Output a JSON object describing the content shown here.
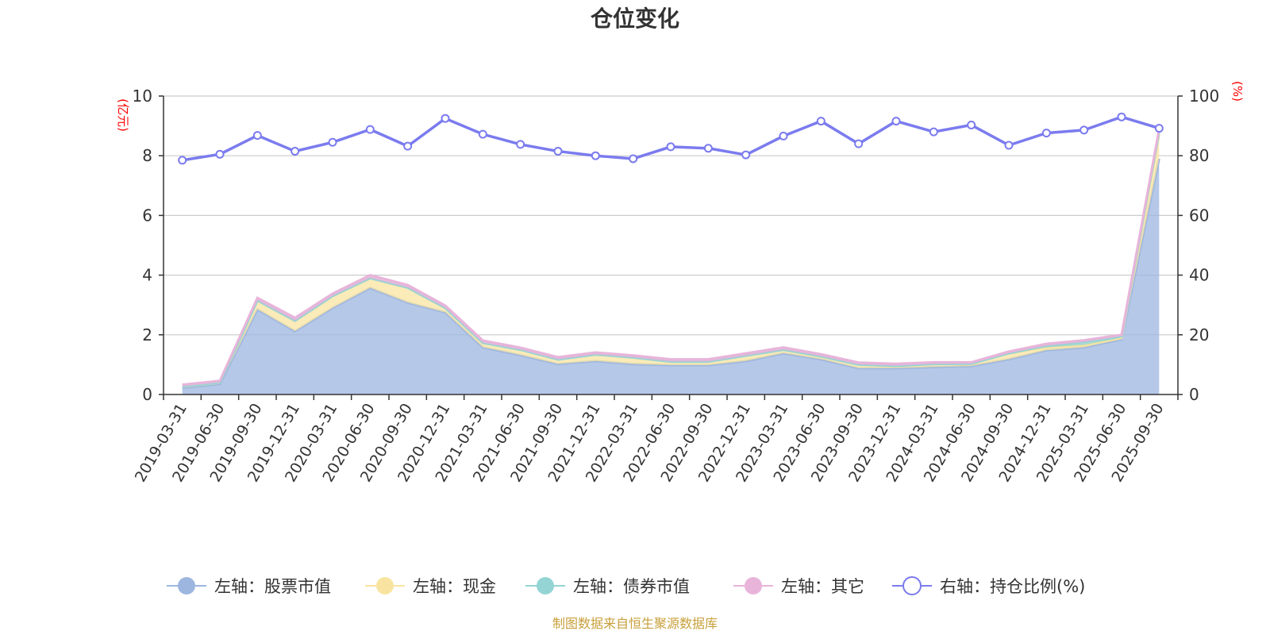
{
  "chart_data": {
    "type": "area",
    "title": "仓位变化",
    "left_unit": "(亿元)",
    "right_unit": "(%)",
    "left_ylim": [
      0,
      10
    ],
    "left_ticks": [
      0,
      2,
      4,
      6,
      8,
      10
    ],
    "right_ylim": [
      0,
      100
    ],
    "right_ticks": [
      0,
      20,
      40,
      60,
      80,
      100
    ],
    "categories": [
      "2019-03-31",
      "2019-06-30",
      "2019-09-30",
      "2019-12-31",
      "2020-03-31",
      "2020-06-30",
      "2020-09-30",
      "2020-12-31",
      "2021-03-31",
      "2021-06-30",
      "2021-09-30",
      "2021-12-31",
      "2022-03-31",
      "2022-06-30",
      "2022-09-30",
      "2022-12-31",
      "2023-03-31",
      "2023-06-30",
      "2023-09-30",
      "2023-12-31",
      "2024-03-31",
      "2024-06-30",
      "2024-09-30",
      "2024-12-31",
      "2025-03-31",
      "2025-06-30",
      "2025-09-30"
    ],
    "stacked_series": [
      {
        "name": "左轴：股票市值",
        "axis": "left",
        "color": "#9db6e0",
        "values": [
          0.22,
          0.35,
          2.85,
          2.12,
          2.9,
          3.57,
          3.08,
          2.75,
          1.58,
          1.32,
          1.02,
          1.12,
          1.02,
          0.98,
          0.98,
          1.12,
          1.38,
          1.18,
          0.88,
          0.88,
          0.92,
          0.95,
          1.18,
          1.48,
          1.58,
          1.85,
          7.9
        ]
      },
      {
        "name": "左轴：现金",
        "axis": "left",
        "color": "#f8e4a0",
        "values": [
          0.05,
          0.05,
          0.3,
          0.35,
          0.4,
          0.33,
          0.5,
          0.15,
          0.15,
          0.18,
          0.15,
          0.22,
          0.22,
          0.12,
          0.12,
          0.18,
          0.12,
          0.1,
          0.12,
          0.08,
          0.1,
          0.08,
          0.2,
          0.1,
          0.08,
          0.05,
          0.8
        ]
      },
      {
        "name": "左轴：债券市值",
        "axis": "left",
        "color": "#94d4d4",
        "values": [
          0,
          0,
          0,
          0,
          0,
          0,
          0,
          0,
          0,
          0,
          0,
          0,
          0,
          0,
          0,
          0,
          0,
          0,
          0,
          0,
          0,
          0,
          0,
          0.05,
          0.1,
          0.05,
          0.1
        ]
      },
      {
        "name": "左轴：其它",
        "axis": "left",
        "color": "#e8b4da",
        "values": [
          0.06,
          0.06,
          0.09,
          0.1,
          0.08,
          0.1,
          0.09,
          0.08,
          0.08,
          0.07,
          0.08,
          0.07,
          0.07,
          0.08,
          0.08,
          0.08,
          0.08,
          0.07,
          0.07,
          0.07,
          0.06,
          0.05,
          0.06,
          0.07,
          0.06,
          0.05,
          0.1
        ]
      }
    ],
    "line_series": {
      "name": "右轴：持仓比例(%)",
      "axis": "right",
      "color": "#7b7bef",
      "values": [
        78.5,
        80.5,
        86.8,
        81.5,
        84.5,
        88.8,
        83.2,
        92.5,
        87.2,
        83.8,
        81.5,
        80.0,
        79.0,
        83.0,
        82.5,
        80.3,
        86.6,
        91.6,
        84.0,
        91.6,
        88.0,
        90.3,
        83.5,
        87.6,
        88.6,
        93.0,
        89.2
      ]
    }
  },
  "legend": [
    {
      "label": "左轴：股票市值",
      "color": "#9db6e0",
      "kind": "filled"
    },
    {
      "label": "左轴：现金",
      "color": "#f8e4a0",
      "kind": "filled"
    },
    {
      "label": "左轴：债券市值",
      "color": "#94d4d4",
      "kind": "filled"
    },
    {
      "label": "左轴：其它",
      "color": "#e8b4da",
      "kind": "filled"
    },
    {
      "label": "右轴：持仓比例(%)",
      "color": "#7b7bef",
      "kind": "hollow"
    }
  ],
  "source": "制图数据来自恒生聚源数据库"
}
